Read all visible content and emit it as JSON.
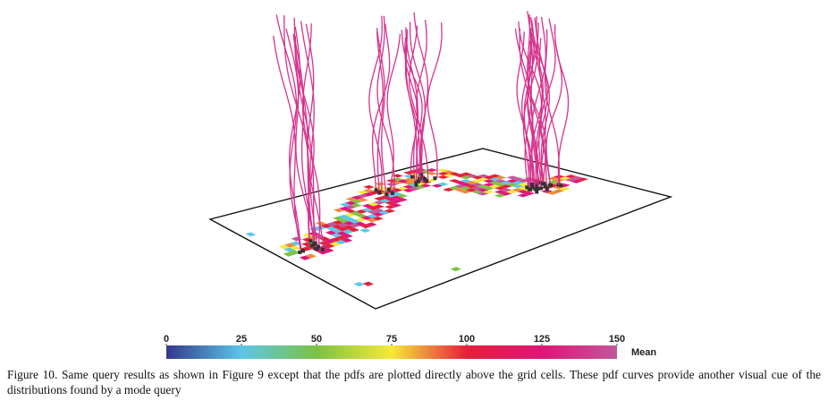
{
  "figure": {
    "colorbar": {
      "range": [
        0,
        150
      ],
      "ticks": [
        0,
        25,
        50,
        75,
        100,
        125,
        150
      ],
      "label": "Mean",
      "colors": [
        "#34378a",
        "#5cc6e8",
        "#7cc243",
        "#f6e93b",
        "#e3203b",
        "#df1578",
        "#c2569c"
      ]
    },
    "caption": "Figure 10.  Same query results as shown in Figure 9 except that the pdfs are plotted directly above the grid cells. These pdf curves provide another visual cue of the distributions found by a mode query"
  }
}
